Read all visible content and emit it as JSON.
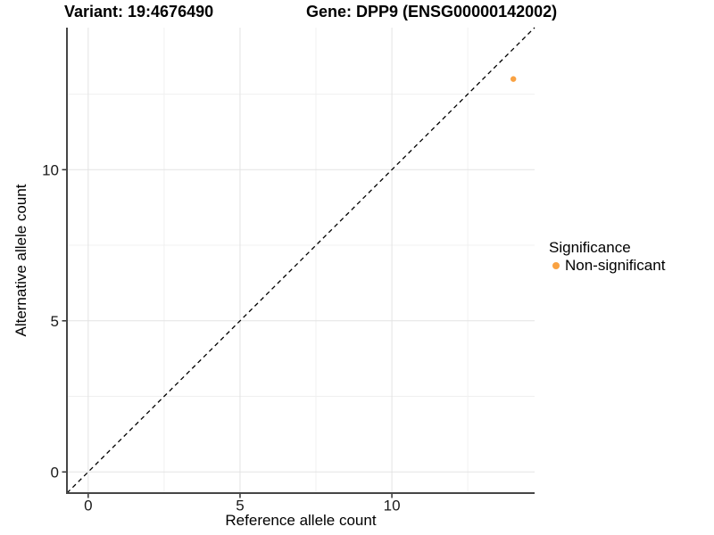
{
  "chart_data": {
    "type": "scatter",
    "title_left": "Variant: 19:4676490",
    "title_right": "Gene: DPP9 (ENSG00000142002)",
    "xlabel": "Reference allele count",
    "ylabel": "Alternative allele count",
    "xlim": [
      -0.7,
      14.7
    ],
    "ylim": [
      -0.7,
      14.7
    ],
    "x_ticks": [
      0,
      5,
      10
    ],
    "y_ticks": [
      0,
      5,
      10
    ],
    "x_minor_ticks": [
      2.5,
      7.5,
      12.5
    ],
    "y_minor_ticks": [
      2.5,
      7.5,
      12.5
    ],
    "grid": "on",
    "reference_line": {
      "type": "identity",
      "slope": 1,
      "intercept": 0,
      "style": "dashed",
      "color": "#000000"
    },
    "series": [
      {
        "name": "Non-significant",
        "color": "#F9A242",
        "points": [
          {
            "x": 14,
            "y": 13
          }
        ]
      }
    ],
    "legend": {
      "title": "Significance",
      "position": "right",
      "entries": [
        {
          "label": "Non-significant",
          "color": "#F9A242"
        }
      ]
    },
    "theme": {
      "grid_major_color": "#E3E3E3",
      "grid_minor_color": "#F0F0F0",
      "axis_line_color": "#464646",
      "tick_color": "#333333",
      "background": "#FFFFFF"
    }
  }
}
